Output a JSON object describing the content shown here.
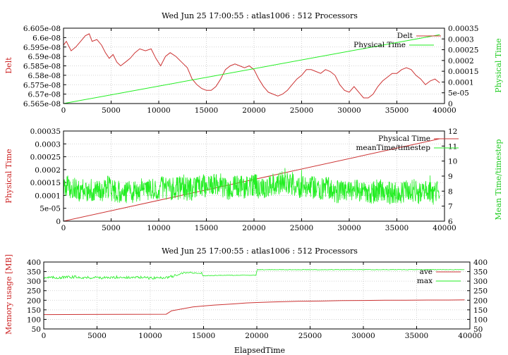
{
  "colors": {
    "red": "#cc3333",
    "green": "#22ee22",
    "green_label": "#22cc22",
    "red_label": "#cc2222"
  },
  "chart_data": [
    {
      "type": "line",
      "title": "Wed Jun 25 17:00:55 : atlas1006 : 512 Processors",
      "xlabel": "",
      "ylabel": "Delt",
      "y2label": "Physical Time",
      "xlim": [
        0,
        40000
      ],
      "ylim": [
        6.565e-08,
        6.605e-08
      ],
      "y2lim": [
        0,
        0.00035
      ],
      "x_ticks": [
        "0",
        "5000",
        "10000",
        "15000",
        "20000",
        "25000",
        "30000",
        "35000",
        "40000"
      ],
      "y_ticks": [
        "6.565e-08",
        "6.57e-08",
        "6.575e-08",
        "6.58e-08",
        "6.585e-08",
        "6.59e-08",
        "6.595e-08",
        "6.6e-08",
        "6.605e-08"
      ],
      "y2_ticks": [
        "0",
        "5e-05",
        "0.0001",
        "0.00015",
        "0.0002",
        "0.00025",
        "0.0003",
        "0.00035"
      ],
      "legend": "top-right",
      "grid": true,
      "series": [
        {
          "name": "Delt",
          "axis": "y",
          "color": "#cc3333",
          "points": [
            [
              0,
              6.596e-08
            ],
            [
              300,
              6.598e-08
            ],
            [
              800,
              6.593e-08
            ],
            [
              1300,
              6.595e-08
            ],
            [
              1800,
              6.598e-08
            ],
            [
              2300,
              6.601e-08
            ],
            [
              2700,
              6.602e-08
            ],
            [
              3000,
              6.598e-08
            ],
            [
              3500,
              6.599e-08
            ],
            [
              4000,
              6.596e-08
            ],
            [
              4400,
              6.592e-08
            ],
            [
              4800,
              6.589e-08
            ],
            [
              5200,
              6.591e-08
            ],
            [
              5600,
              6.587e-08
            ],
            [
              6000,
              6.585e-08
            ],
            [
              6500,
              6.587e-08
            ],
            [
              7000,
              6.589e-08
            ],
            [
              7500,
              6.592e-08
            ],
            [
              8000,
              6.594e-08
            ],
            [
              8600,
              6.593e-08
            ],
            [
              9200,
              6.594e-08
            ],
            [
              9700,
              6.589e-08
            ],
            [
              10200,
              6.585e-08
            ],
            [
              10700,
              6.59e-08
            ],
            [
              11200,
              6.592e-08
            ],
            [
              11800,
              6.59e-08
            ],
            [
              12400,
              6.587e-08
            ],
            [
              13000,
              6.584e-08
            ],
            [
              13500,
              6.578e-08
            ],
            [
              14000,
              6.575e-08
            ],
            [
              14500,
              6.573e-08
            ],
            [
              15000,
              6.572e-08
            ],
            [
              15500,
              6.572e-08
            ],
            [
              16000,
              6.574e-08
            ],
            [
              16500,
              6.578e-08
            ],
            [
              17000,
              6.583e-08
            ],
            [
              17500,
              6.585e-08
            ],
            [
              18000,
              6.586e-08
            ],
            [
              18500,
              6.585e-08
            ],
            [
              19000,
              6.584e-08
            ],
            [
              19500,
              6.585e-08
            ],
            [
              20000,
              6.583e-08
            ],
            [
              20500,
              6.578e-08
            ],
            [
              21000,
              6.574e-08
            ],
            [
              21500,
              6.571e-08
            ],
            [
              22000,
              6.57e-08
            ],
            [
              22500,
              6.569e-08
            ],
            [
              23000,
              6.57e-08
            ],
            [
              23500,
              6.572e-08
            ],
            [
              24000,
              6.575e-08
            ],
            [
              24500,
              6.578e-08
            ],
            [
              25000,
              6.58e-08
            ],
            [
              25500,
              6.583e-08
            ],
            [
              26000,
              6.583e-08
            ],
            [
              26500,
              6.582e-08
            ],
            [
              27000,
              6.581e-08
            ],
            [
              27500,
              6.583e-08
            ],
            [
              28000,
              6.582e-08
            ],
            [
              28500,
              6.58e-08
            ],
            [
              29000,
              6.575e-08
            ],
            [
              29500,
              6.572e-08
            ],
            [
              30000,
              6.571e-08
            ],
            [
              30500,
              6.574e-08
            ],
            [
              31000,
              6.571e-08
            ],
            [
              31500,
              6.568e-08
            ],
            [
              32000,
              6.568e-08
            ],
            [
              32500,
              6.57e-08
            ],
            [
              33000,
              6.574e-08
            ],
            [
              33500,
              6.577e-08
            ],
            [
              34000,
              6.579e-08
            ],
            [
              34500,
              6.581e-08
            ],
            [
              35000,
              6.581e-08
            ],
            [
              35500,
              6.583e-08
            ],
            [
              36000,
              6.584e-08
            ],
            [
              36500,
              6.583e-08
            ],
            [
              37000,
              6.58e-08
            ],
            [
              37500,
              6.578e-08
            ],
            [
              38000,
              6.575e-08
            ],
            [
              38500,
              6.577e-08
            ],
            [
              39000,
              6.578e-08
            ],
            [
              39500,
              6.576e-08
            ]
          ]
        },
        {
          "name": "Physical Time",
          "axis": "y2",
          "color": "#22ee22",
          "points": [
            [
              0,
              0
            ],
            [
              39500,
              0.00032
            ]
          ]
        }
      ]
    },
    {
      "type": "line",
      "title": "",
      "xlabel": "",
      "ylabel": "Physical Time",
      "y2label": "Mean Time/timestep",
      "xlim": [
        0,
        40000
      ],
      "ylim": [
        0,
        0.00035
      ],
      "y2lim": [
        6,
        12
      ],
      "x_ticks": [
        "0",
        "5000",
        "10000",
        "15000",
        "20000",
        "25000",
        "30000",
        "35000",
        "40000"
      ],
      "y_ticks": [
        "0",
        "5e-05",
        "0.0001",
        "0.00015",
        "0.0002",
        "0.00025",
        "0.0003",
        "0.00035"
      ],
      "y2_ticks": [
        "6",
        "7",
        "8",
        "9",
        "10",
        "11",
        "12"
      ],
      "legend": "top-right",
      "grid": true,
      "series": [
        {
          "name": "Physical Time",
          "axis": "y",
          "color": "#cc3333",
          "points": [
            [
              0,
              0
            ],
            [
              39500,
              0.00032
            ]
          ]
        },
        {
          "name": "meanTime/timestep",
          "axis": "y2",
          "color": "#22ee22",
          "points": [
            [
              0,
              8.4
            ],
            [
              800,
              8.2
            ],
            [
              1600,
              8.0
            ],
            [
              2400,
              8.1
            ],
            [
              3200,
              8.0
            ],
            [
              4000,
              7.9
            ],
            [
              4800,
              8.3
            ],
            [
              5600,
              7.9
            ],
            [
              6400,
              8.0
            ],
            [
              7200,
              7.9
            ],
            [
              8000,
              8.1
            ],
            [
              8800,
              8.2
            ],
            [
              9600,
              8.0
            ],
            [
              10400,
              8.3
            ],
            [
              11200,
              8.1
            ],
            [
              12000,
              8.3
            ],
            [
              12800,
              8.2
            ],
            [
              13600,
              8.1
            ],
            [
              14400,
              8.4
            ],
            [
              15200,
              8.3
            ],
            [
              16000,
              8.5
            ],
            [
              16800,
              8.1
            ],
            [
              17600,
              8.2
            ],
            [
              18400,
              8.3
            ],
            [
              19200,
              8.2
            ],
            [
              20000,
              8.4
            ],
            [
              20800,
              8.2
            ],
            [
              21600,
              8.3
            ],
            [
              22400,
              8.5
            ],
            [
              23200,
              8.7
            ],
            [
              24000,
              8.5
            ],
            [
              24800,
              8.3
            ],
            [
              25600,
              8.4
            ],
            [
              26400,
              8.2
            ],
            [
              27200,
              8.1
            ],
            [
              27800,
              8.3
            ],
            [
              28400,
              7.9
            ],
            [
              29200,
              8.0
            ],
            [
              30000,
              7.9
            ],
            [
              30800,
              8.1
            ],
            [
              31600,
              8.0
            ],
            [
              32400,
              7.9
            ],
            [
              33200,
              8.1
            ],
            [
              34000,
              7.9
            ],
            [
              34800,
              7.8
            ],
            [
              35600,
              7.9
            ],
            [
              36400,
              8.0
            ],
            [
              37200,
              7.9
            ],
            [
              38000,
              7.9
            ],
            [
              38800,
              7.8
            ],
            [
              39500,
              8.0
            ]
          ]
        }
      ]
    },
    {
      "type": "line",
      "title": "Wed Jun 25 17:00:55 : atlas1006 : 512 Processors",
      "xlabel": "ElapsedTime",
      "ylabel": "Memory usage [MB]",
      "xlim": [
        0,
        40000
      ],
      "ylim": [
        50,
        400
      ],
      "y2lim": [
        50,
        400
      ],
      "x_ticks": [
        "0",
        "5000",
        "10000",
        "15000",
        "20000",
        "25000",
        "30000",
        "35000",
        "40000"
      ],
      "y_ticks": [
        "50",
        "100",
        "150",
        "200",
        "250",
        "300",
        "350",
        "400"
      ],
      "y2_ticks": [
        "50",
        "100",
        "150",
        "200",
        "250",
        "300",
        "350",
        "400"
      ],
      "legend": "top-right",
      "grid": true,
      "series": [
        {
          "name": "ave",
          "axis": "y",
          "color": "#cc3333",
          "points": [
            [
              0,
              125
            ],
            [
              11500,
              127
            ],
            [
              12000,
              145
            ],
            [
              13000,
              155
            ],
            [
              14000,
              165
            ],
            [
              15000,
              170
            ],
            [
              16000,
              175
            ],
            [
              17000,
              178
            ],
            [
              18000,
              182
            ],
            [
              19000,
              186
            ],
            [
              20000,
              188
            ],
            [
              22000,
              192
            ],
            [
              24000,
              195
            ],
            [
              26000,
              196
            ],
            [
              28000,
              198
            ],
            [
              30000,
              199
            ],
            [
              32000,
              200
            ],
            [
              34000,
              200
            ],
            [
              36000,
              201
            ],
            [
              38000,
              201
            ],
            [
              39500,
              202
            ]
          ]
        },
        {
          "name": "max",
          "axis": "y",
          "color": "#22ee22",
          "points": [
            [
              0,
              320
            ],
            [
              1000,
              318
            ],
            [
              2000,
              320
            ],
            [
              3000,
              322
            ],
            [
              4000,
              318
            ],
            [
              5000,
              320
            ],
            [
              6000,
              316
            ],
            [
              7000,
              322
            ],
            [
              8000,
              318
            ],
            [
              9000,
              320
            ],
            [
              10000,
              316
            ],
            [
              11000,
              318
            ],
            [
              11800,
              322
            ],
            [
              12500,
              330
            ],
            [
              13000,
              342
            ],
            [
              13800,
              345
            ],
            [
              14500,
              342
            ],
            [
              14800,
              342
            ],
            [
              14900,
              328
            ],
            [
              16000,
              330
            ],
            [
              17000,
              331
            ],
            [
              18000,
              330
            ],
            [
              19000,
              331
            ],
            [
              19950,
              331
            ],
            [
              20000,
              360
            ],
            [
              22000,
              360
            ],
            [
              24000,
              360
            ],
            [
              26000,
              360
            ],
            [
              28000,
              360
            ],
            [
              30000,
              360
            ],
            [
              32000,
              360
            ],
            [
              34000,
              360
            ],
            [
              36000,
              360
            ],
            [
              38000,
              360
            ],
            [
              39500,
              360
            ]
          ]
        }
      ]
    }
  ]
}
